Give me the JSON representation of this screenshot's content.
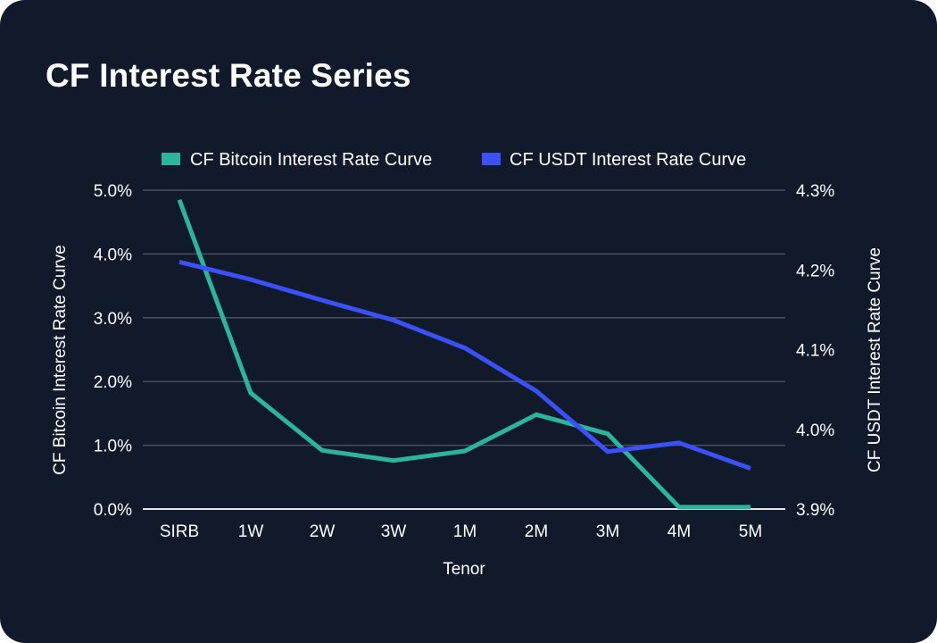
{
  "card": {
    "title": "CF Interest Rate Series"
  },
  "colors": {
    "background": "#111a2b",
    "btc": "#2bb59d",
    "usdt": "#3b50f5",
    "grid": "#4a5060",
    "baseline": "#e6e6e6",
    "text": "#ffffff"
  },
  "chart_data": {
    "type": "line",
    "title": "",
    "xlabel": "Tenor",
    "categories": [
      "SIRB",
      "1W",
      "2W",
      "3W",
      "1M",
      "2M",
      "3M",
      "4M",
      "5M"
    ],
    "series": [
      {
        "name": "CF Bitcoin Interest Rate Curve",
        "axis": "left",
        "values": [
          4.85,
          1.82,
          0.92,
          0.76,
          0.91,
          1.48,
          1.18,
          0.03,
          0.03
        ]
      },
      {
        "name": "CF USDT Interest Rate Curve",
        "axis": "right",
        "values": [
          4.21,
          4.188,
          4.162,
          4.137,
          4.102,
          4.048,
          3.972,
          3.983,
          3.951
        ]
      }
    ],
    "left_axis": {
      "label": "CF Bitcoin Interest Rate Curve",
      "ylim": [
        0,
        5
      ],
      "ticks": [
        0,
        1,
        2,
        3,
        4,
        5
      ],
      "tick_labels": [
        "0.0%",
        "1.0%",
        "2.0%",
        "3.0%",
        "4.0%",
        "5.0%"
      ]
    },
    "right_axis": {
      "label": "CF USDT Interest Rate Curve",
      "ylim": [
        3.9,
        4.3
      ],
      "ticks": [
        3.9,
        4.0,
        4.1,
        4.2,
        4.3
      ],
      "tick_labels": [
        "3.9%",
        "4.0%",
        "4.1%",
        "4.2%",
        "4.3%"
      ]
    },
    "grid": true,
    "legend_position": "top-center"
  }
}
